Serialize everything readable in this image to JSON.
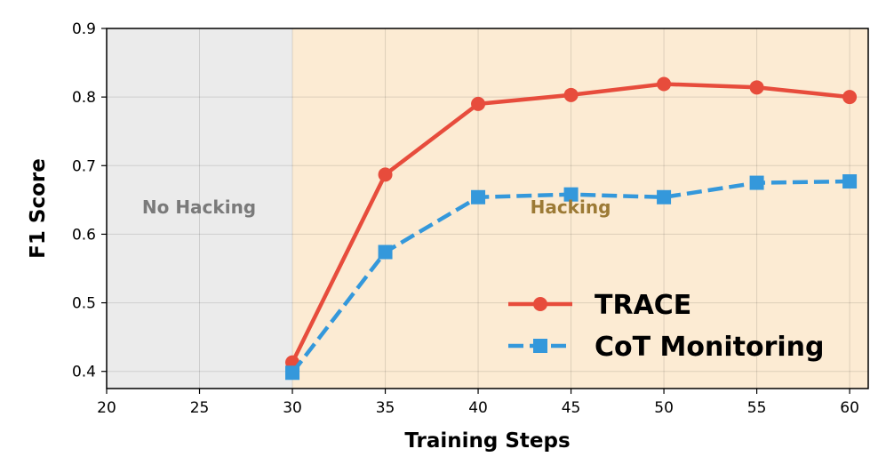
{
  "chart_data": {
    "type": "line",
    "title": "",
    "xlabel": "Training Steps",
    "ylabel": "F1 Score",
    "xlim": [
      20,
      61
    ],
    "ylim": [
      0.375,
      0.9
    ],
    "xticks": [
      20,
      25,
      30,
      35,
      40,
      45,
      50,
      55,
      60
    ],
    "yticks": [
      0.4,
      0.5,
      0.6,
      0.7,
      0.8,
      0.9
    ],
    "xtick_labels": [
      "20",
      "25",
      "30",
      "35",
      "40",
      "45",
      "50",
      "55",
      "60"
    ],
    "ytick_labels": [
      "0.4",
      "0.5",
      "0.6",
      "0.7",
      "0.8",
      "0.9"
    ],
    "grid": true,
    "legend_position": "bottom-right",
    "regions": [
      {
        "label": "No Hacking",
        "x_start": 20,
        "x_end": 30,
        "color": "#ebebeb",
        "text_color": "#7a7a7a"
      },
      {
        "label": "Hacking",
        "x_start": 30,
        "x_end": 61,
        "color": "#fcebd3",
        "text_color": "#9c7a35"
      }
    ],
    "series": [
      {
        "name": "TRACE",
        "color": "#e74c3c",
        "marker": "circle",
        "line_style": "solid",
        "x": [
          30,
          35,
          40,
          45,
          50,
          55,
          60
        ],
        "values": [
          0.413,
          0.687,
          0.79,
          0.803,
          0.819,
          0.814,
          0.8
        ]
      },
      {
        "name": "CoT Monitoring",
        "color": "#3498db",
        "marker": "square",
        "line_style": "dashed",
        "x": [
          30,
          35,
          40,
          45,
          50,
          55,
          60
        ],
        "values": [
          0.398,
          0.574,
          0.654,
          0.658,
          0.654,
          0.675,
          0.677
        ]
      }
    ]
  }
}
